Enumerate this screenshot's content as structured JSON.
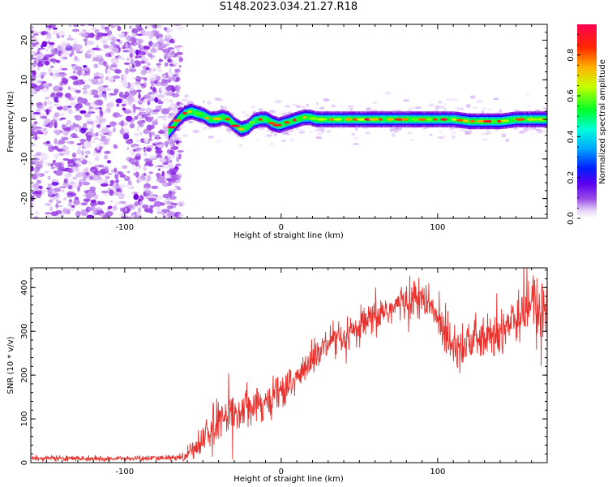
{
  "title": "S148.2023.034.21.27.R18",
  "colors": {
    "snr_line": "#e8302c",
    "frame": "#000000",
    "background": "#ffffff",
    "colormap": [
      "#ffffff",
      "#ead7fa",
      "#b47ae8",
      "#7a00e0",
      "#1a00ff",
      "#00a0ff",
      "#00ffe0",
      "#00ff20",
      "#c8ff00",
      "#ffb000",
      "#ff3000",
      "#ff0050"
    ]
  },
  "chart_data": [
    {
      "type": "heatmap",
      "name": "spectrogram",
      "xlabel": "Height of straight line (km)",
      "ylabel": "Frequency (Hz)",
      "xlim": [
        -160,
        170
      ],
      "ylim": [
        -25,
        24
      ],
      "x_ticks": [
        -100,
        0,
        100
      ],
      "x_tick_labels": [
        "-100",
        "0",
        "100"
      ],
      "y_ticks": [
        -20,
        -10,
        0,
        10,
        20
      ],
      "y_tick_labels": [
        "-20",
        "-10",
        "0",
        "10",
        "20"
      ],
      "grid": false,
      "noise_region_x": [
        -160,
        -70
      ],
      "noise_amplitude_range": [
        0.05,
        0.25
      ],
      "signal_onset_x": -72,
      "signal_amplitude_range": [
        0.3,
        1.0
      ],
      "signal_track": {
        "x": [
          -74,
          -70,
          -66,
          -62,
          -58,
          -54,
          -50,
          -46,
          -42,
          -38,
          -34,
          -30,
          -26,
          -22,
          -18,
          -14,
          -10,
          -6,
          -2,
          2,
          6,
          10,
          14,
          18,
          22,
          26,
          30,
          40,
          50,
          60,
          70,
          80,
          90,
          100,
          110,
          120,
          130,
          140,
          150,
          160,
          168
        ],
        "y": [
          -4,
          -2,
          0,
          1.5,
          2,
          1.5,
          1,
          0,
          0,
          0.5,
          0,
          -1.5,
          -2.5,
          -2,
          -0.5,
          0,
          0,
          -1,
          -1.5,
          -1,
          -0.5,
          0,
          0.5,
          0.5,
          0,
          0,
          0,
          0,
          0,
          0,
          0,
          0,
          0,
          0,
          0,
          -0.5,
          -0.5,
          -0.5,
          0,
          0,
          0
        ]
      },
      "colorbar": {
        "label": "Normalized spectral amplitude",
        "range": [
          0.0,
          0.95
        ],
        "ticks": [
          0.0,
          0.2,
          0.4,
          0.6,
          0.8
        ],
        "tick_labels": [
          "0.0",
          "0.2",
          "0.4",
          "0.6",
          "0.8"
        ]
      }
    },
    {
      "type": "line",
      "name": "snr",
      "xlabel": "Height of straight line (km)",
      "ylabel": "SNR (10 * v/v)",
      "xlim": [
        -160,
        170
      ],
      "ylim": [
        0,
        445
      ],
      "x_ticks": [
        -100,
        0,
        100
      ],
      "x_tick_labels": [
        "-100",
        "0",
        "100"
      ],
      "y_ticks": [
        0,
        100,
        200,
        300,
        400
      ],
      "y_tick_labels": [
        "0",
        "100",
        "200",
        "300",
        "400"
      ],
      "grid": false,
      "envelope": {
        "x": [
          -160,
          -140,
          -120,
          -100,
          -80,
          -65,
          -60,
          -55,
          -50,
          -45,
          -40,
          -35,
          -30,
          -25,
          -20,
          -15,
          -10,
          -5,
          0,
          5,
          10,
          15,
          20,
          25,
          30,
          35,
          40,
          45,
          50,
          55,
          60,
          65,
          70,
          75,
          80,
          85,
          90,
          95,
          100,
          105,
          110,
          115,
          120,
          125,
          130,
          135,
          140,
          145,
          150,
          155,
          160,
          165,
          170
        ],
        "y": [
          10,
          10,
          9,
          9,
          10,
          12,
          20,
          35,
          55,
          75,
          95,
          105,
          115,
          125,
          135,
          140,
          135,
          145,
          160,
          175,
          195,
          215,
          235,
          255,
          270,
          275,
          280,
          295,
          305,
          320,
          330,
          345,
          350,
          360,
          370,
          375,
          370,
          355,
          330,
          300,
          275,
          270,
          275,
          280,
          280,
          285,
          300,
          320,
          340,
          355,
          360,
          350,
          330
        ],
        "noise_sd": [
          3,
          3,
          3,
          3,
          3,
          4,
          8,
          14,
          18,
          22,
          24,
          22,
          22,
          22,
          22,
          22,
          20,
          22,
          24,
          22,
          20,
          20,
          20,
          20,
          18,
          16,
          16,
          18,
          20,
          22,
          22,
          22,
          20,
          20,
          22,
          22,
          22,
          22,
          26,
          30,
          30,
          28,
          26,
          24,
          24,
          26,
          30,
          34,
          38,
          40,
          40,
          42,
          42
        ]
      }
    }
  ]
}
